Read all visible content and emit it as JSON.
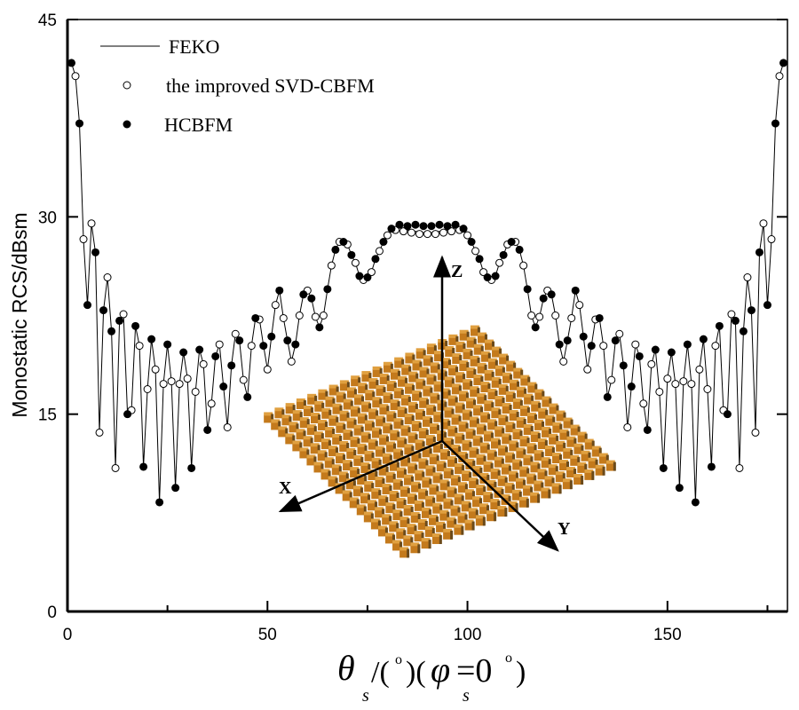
{
  "chart_data": {
    "type": "line",
    "ylabel": "Monostatic RCS/dBsm",
    "xlabel": {
      "theta": "θ",
      "theta_sub": "s",
      "unit": "/(",
      "deg": "o",
      "mid": ")(",
      "phi": "φ",
      "phi_sub": "s",
      "eq": "=0",
      "deg2": "o",
      "close": ")"
    },
    "xlim": [
      0,
      180
    ],
    "ylim": [
      0,
      45
    ],
    "xticks": [
      0,
      50,
      100,
      150
    ],
    "xminor": [
      25,
      75,
      125,
      175
    ],
    "yticks": [
      0,
      15,
      30,
      45
    ],
    "grid": false,
    "legend_placement": "top-left",
    "series": [
      {
        "name": "FEKO",
        "style": "line",
        "color": "#000000",
        "x_range": [
          1,
          179
        ],
        "x_step": 1,
        "y": [
          41.7,
          40.7,
          37.1,
          28.3,
          23.3,
          29.5,
          27.3,
          13.6,
          22.9,
          25.4,
          21.3,
          10.9,
          22.1,
          22.6,
          15.0,
          15.3,
          21.7,
          20.2,
          11.0,
          16.9,
          20.7,
          18.4,
          8.3,
          17.3,
          20.3,
          17.5,
          9.4,
          17.3,
          19.7,
          17.7,
          10.9,
          16.7,
          19.9,
          18.8,
          13.8,
          15.8,
          19.4,
          20.3,
          17.1,
          14.0,
          18.7,
          21.1,
          20.6,
          17.6,
          16.3,
          20.2,
          22.3,
          22.2,
          20.2,
          18.4,
          20.9,
          23.3,
          24.4,
          22.3,
          20.6,
          19.0,
          20.3,
          22.5,
          24.1,
          24.4,
          23.8,
          22.4,
          21.6,
          22.5,
          24.5,
          26.3,
          27.5,
          28.1,
          28.1,
          27.9,
          27.1,
          26.5,
          25.5,
          25.2,
          25.4,
          25.8,
          26.8,
          27.4,
          28.1,
          28.6,
          29.1,
          29.2,
          29.2,
          29.1,
          29.0,
          28.9,
          28.9,
          28.8,
          28.8,
          28.8,
          28.8,
          28.8,
          28.9,
          28.9,
          29.0,
          29.1,
          29.2,
          29.2,
          29.1,
          28.6,
          28.1,
          27.4,
          26.8,
          25.8,
          25.4,
          25.2,
          25.5,
          26.5,
          27.1,
          27.9,
          28.1,
          28.1,
          27.5,
          26.3,
          24.5,
          22.5,
          21.6,
          22.4,
          23.8,
          24.4,
          24.1,
          22.5,
          20.3,
          19.0,
          20.6,
          22.3,
          24.4,
          23.3,
          20.9,
          18.4,
          20.2,
          22.2,
          22.3,
          20.2,
          16.3,
          17.6,
          20.6,
          21.1,
          18.7,
          14.0,
          17.1,
          20.3,
          19.4,
          15.8,
          13.8,
          18.8,
          19.9,
          16.7,
          10.9,
          17.7,
          19.7,
          17.3,
          9.4,
          17.5,
          20.3,
          17.3,
          8.3,
          18.4,
          20.7,
          16.9,
          11.0,
          20.2,
          21.7,
          15.3,
          15.0,
          22.6,
          22.1,
          10.9,
          21.3,
          25.4,
          22.9,
          13.6,
          27.3,
          29.5,
          23.3,
          28.3,
          37.1,
          40.7,
          41.7
        ]
      },
      {
        "name": "the improved SVD-CBFM",
        "style": "open-circle",
        "color": "#000000",
        "x_range": [
          2,
          178
        ],
        "x_step": 2,
        "y": [
          40.7,
          28.3,
          29.5,
          13.6,
          25.4,
          10.9,
          22.6,
          15.3,
          20.2,
          16.9,
          18.4,
          17.3,
          17.5,
          17.3,
          17.7,
          16.7,
          18.8,
          15.8,
          20.3,
          14.0,
          21.1,
          17.6,
          20.2,
          22.2,
          18.4,
          23.3,
          22.3,
          19.0,
          22.5,
          24.4,
          22.4,
          22.5,
          26.3,
          28.1,
          27.9,
          26.5,
          25.2,
          25.8,
          27.4,
          28.6,
          29.0,
          28.9,
          28.8,
          28.7,
          28.7,
          28.7,
          28.8,
          28.9,
          29.0,
          28.6,
          27.4,
          25.8,
          25.2,
          26.5,
          27.9,
          28.1,
          26.3,
          22.5,
          22.4,
          24.4,
          22.5,
          19.0,
          22.3,
          23.3,
          18.4,
          22.2,
          20.2,
          17.6,
          21.1,
          14.0,
          20.3,
          15.8,
          18.8,
          16.7,
          17.7,
          17.3,
          17.5,
          17.3,
          18.4,
          16.9,
          20.2,
          15.3,
          22.6,
          10.9,
          25.4,
          13.6,
          29.5,
          28.3,
          40.7
        ]
      },
      {
        "name": "HCBFM",
        "style": "filled-circle",
        "color": "#000000",
        "x_range": [
          1,
          179
        ],
        "x_step": 2,
        "y": [
          41.7,
          37.1,
          23.3,
          27.3,
          22.9,
          21.3,
          22.1,
          15.0,
          21.7,
          11.0,
          20.7,
          8.3,
          20.3,
          9.4,
          19.7,
          10.9,
          19.9,
          13.8,
          19.4,
          17.1,
          18.7,
          20.6,
          16.3,
          22.3,
          20.2,
          20.9,
          24.4,
          20.6,
          20.3,
          24.1,
          23.8,
          21.6,
          24.5,
          27.5,
          28.1,
          27.1,
          25.5,
          25.4,
          26.8,
          28.1,
          29.1,
          29.4,
          29.3,
          29.4,
          29.3,
          29.3,
          29.4,
          29.3,
          29.4,
          29.1,
          28.1,
          26.8,
          25.4,
          25.5,
          27.1,
          28.1,
          27.5,
          24.5,
          21.6,
          23.8,
          24.1,
          20.3,
          20.6,
          24.4,
          20.9,
          20.2,
          22.3,
          16.3,
          20.6,
          18.7,
          17.1,
          19.4,
          13.8,
          19.9,
          10.9,
          19.7,
          9.4,
          20.3,
          8.3,
          20.7,
          11.0,
          21.7,
          15.0,
          22.1,
          21.3,
          22.9,
          27.3,
          23.3,
          37.1,
          41.7
        ]
      }
    ],
    "inset": {
      "axis_labels": [
        "X",
        "Y",
        "Z"
      ],
      "array_color": "#c47a1c"
    }
  }
}
